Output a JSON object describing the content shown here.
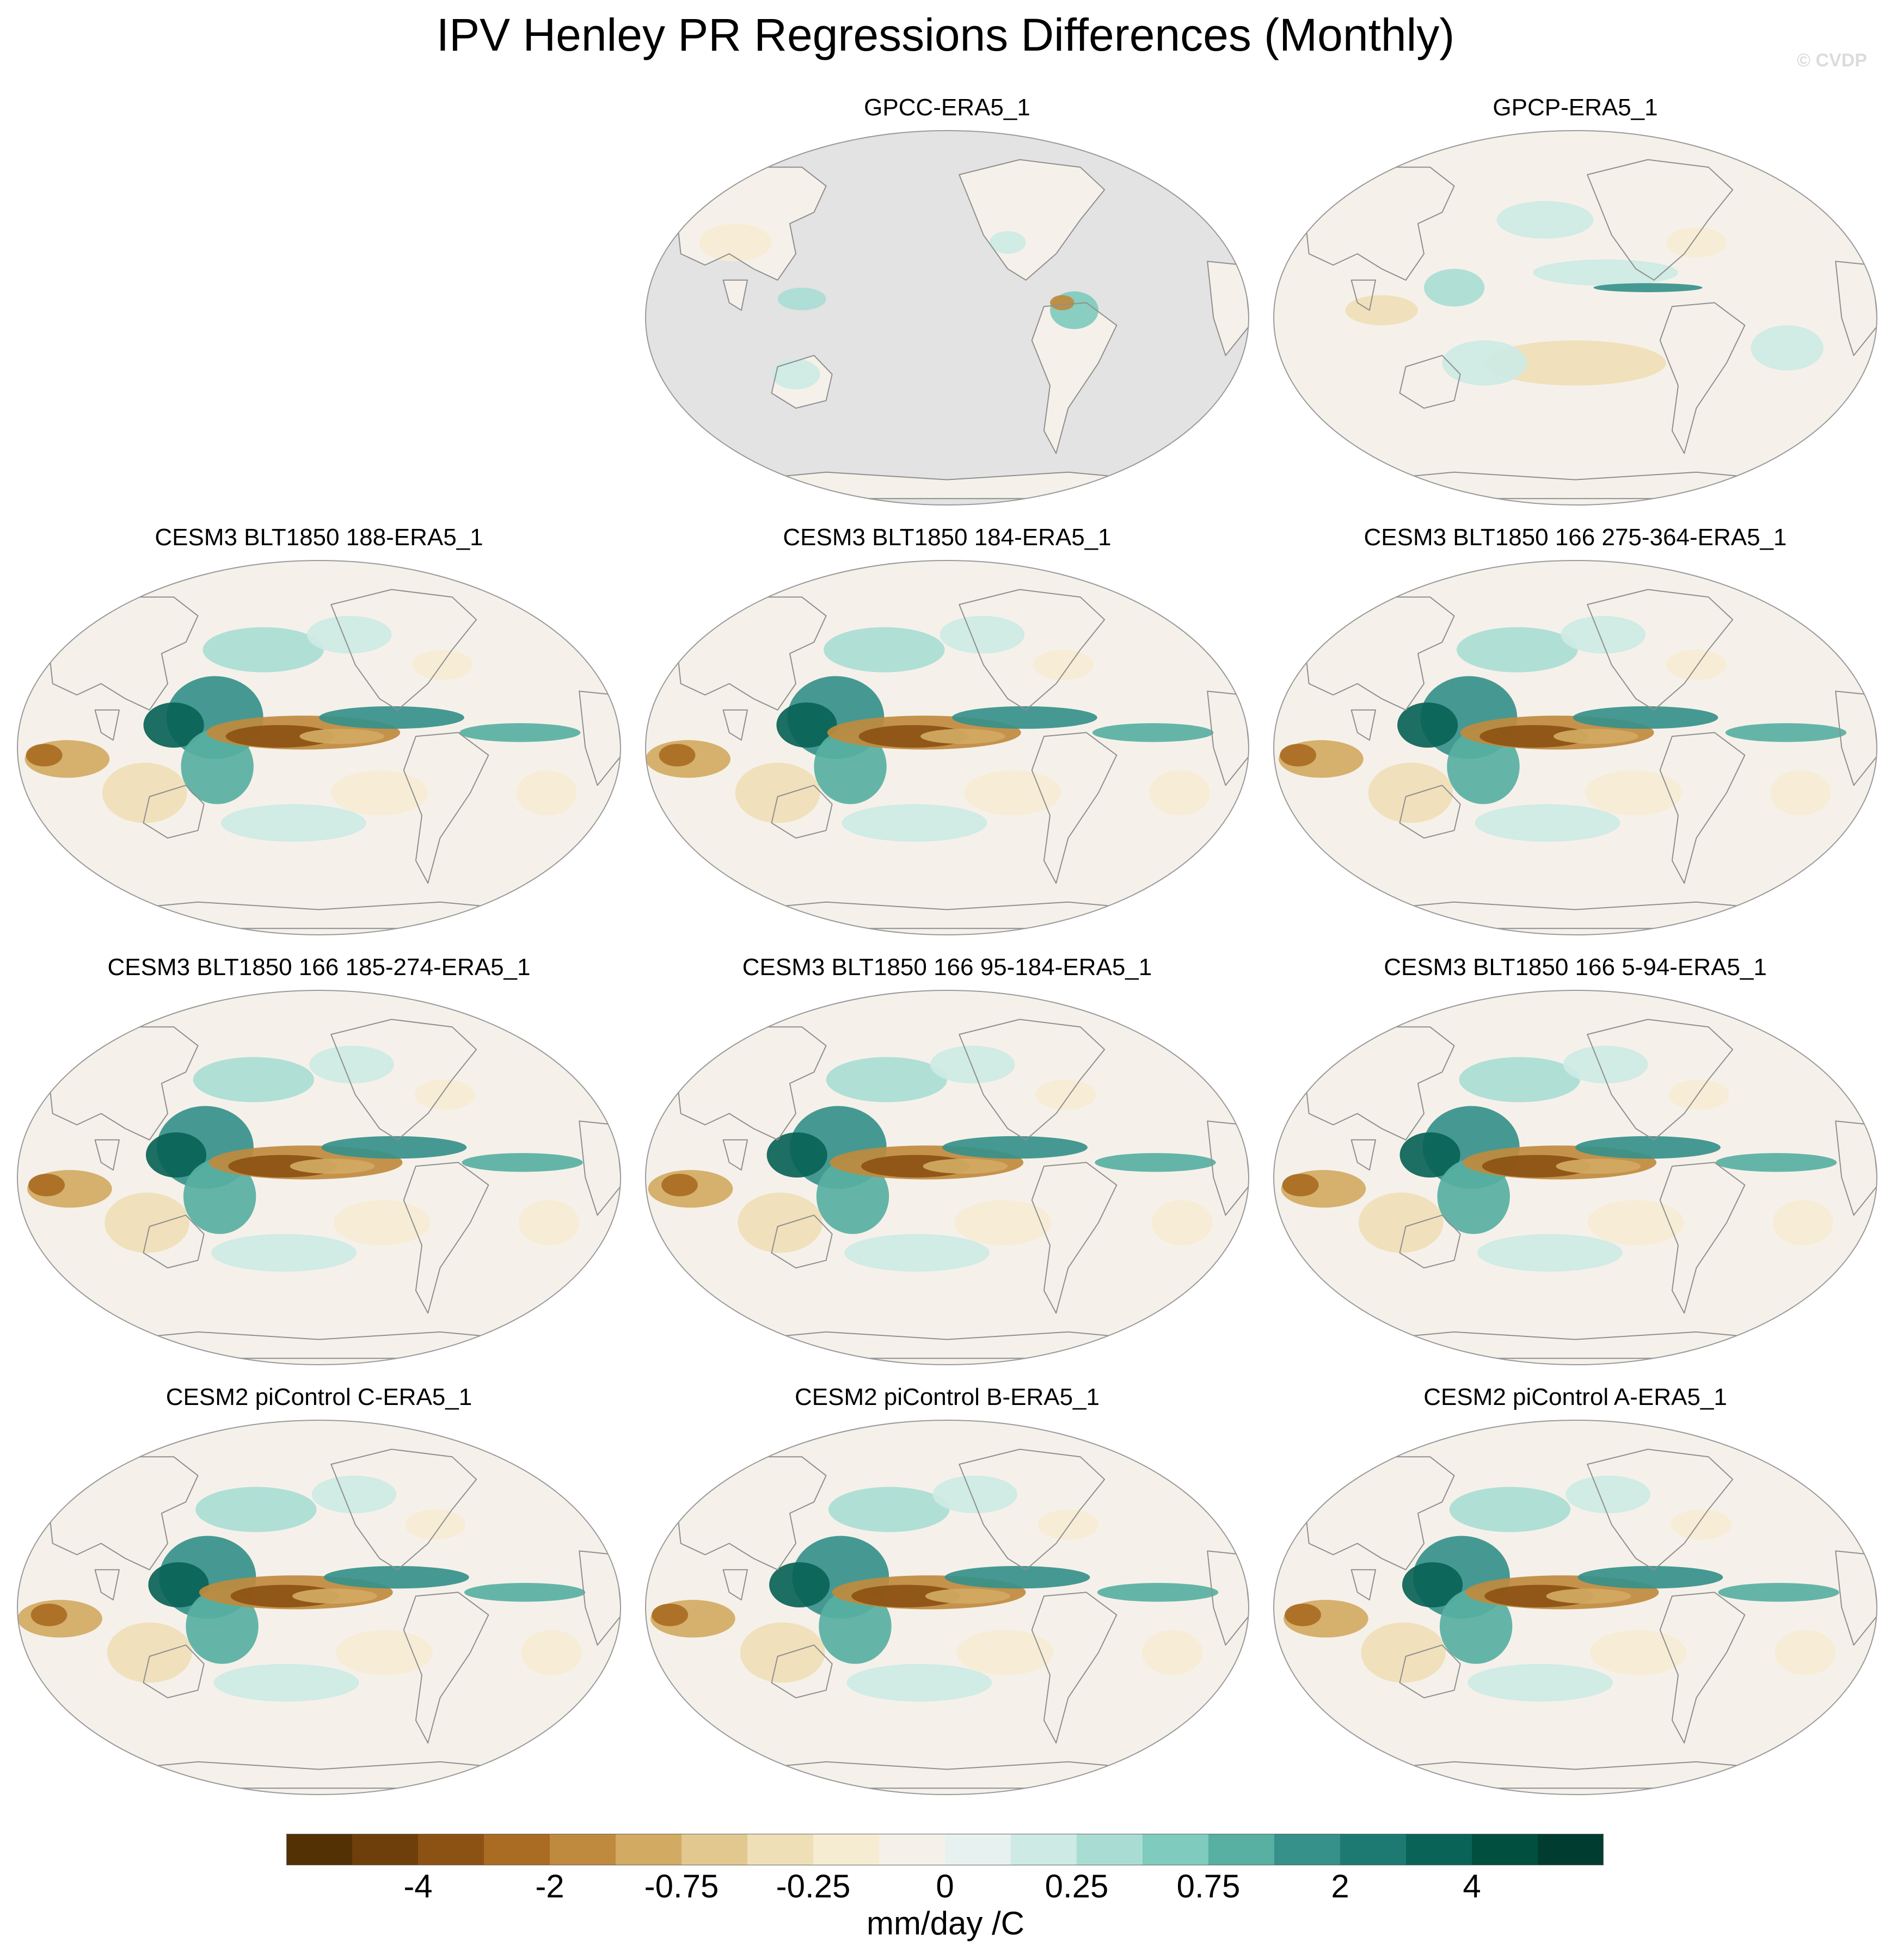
{
  "title": "IPV Henley PR Regressions Differences (Monthly)",
  "watermark": "© CVDP",
  "chart_data": {
    "type": "heatmap",
    "projection": "Robinson (Pacific-centered)",
    "units": "mm/day /C",
    "colorbar": {
      "labels": [
        "-4",
        "-2",
        "-0.75",
        "-0.25",
        "0",
        "0.25",
        "0.75",
        "2",
        "4"
      ],
      "colors": [
        "#543005",
        "#6f3f0b",
        "#8c5214",
        "#a96c22",
        "#c08a3e",
        "#d2aa62",
        "#e2c88f",
        "#efdfb7",
        "#f6ecd2",
        "#f5f1ea",
        "#e6f1f0",
        "#cdeae4",
        "#a9ddd4",
        "#7fcbbd",
        "#57b0a2",
        "#36918a",
        "#1c7a72",
        "#0a6357",
        "#01503f",
        "#003c30"
      ]
    },
    "panels": [
      {
        "title": "GPCC-ERA5_1",
        "land_only": true
      },
      {
        "title": "GPCP-ERA5_1",
        "land_only": false
      },
      {
        "title": "CESM3 BLT1850 188-ERA5_1",
        "land_only": false
      },
      {
        "title": "CESM3 BLT1850 184-ERA5_1",
        "land_only": false
      },
      {
        "title": "CESM3 BLT1850 166 275-364-ERA5_1",
        "land_only": false
      },
      {
        "title": "CESM3 BLT1850 166 185-274-ERA5_1",
        "land_only": false
      },
      {
        "title": "CESM3 BLT1850 166 95-184-ERA5_1",
        "land_only": false
      },
      {
        "title": "CESM3 BLT1850 166 5-94-ERA5_1",
        "land_only": false
      },
      {
        "title": "CESM2 piControl C-ERA5_1",
        "land_only": false
      },
      {
        "title": "CESM2 piControl B-ERA5_1",
        "land_only": false
      },
      {
        "title": "CESM2 piControl A-ERA5_1",
        "land_only": false
      }
    ]
  }
}
